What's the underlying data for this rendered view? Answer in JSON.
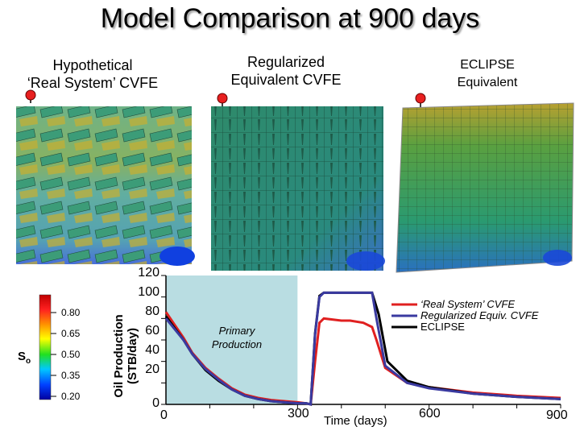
{
  "title": "Model Comparison at 900 days",
  "panels": {
    "real": {
      "label_line1": "Hypothetical",
      "label_line2": "‘Real System’ CVFE"
    },
    "reg": {
      "label_line1": "Regularized",
      "label_line2": "Equivalent CVFE"
    },
    "eclipse": {
      "label_line1": "ECLIPSE",
      "label_line2": "Equivalent"
    }
  },
  "colorbar": {
    "variable": "So",
    "ticks": [
      "0.80",
      "0.65",
      "0.50",
      "0.35",
      "0.20"
    ],
    "colors": [
      "#c00000",
      "#ff2020",
      "#ff9000",
      "#ffff00",
      "#20e020",
      "#00c8ff",
      "#0040ff",
      "#0000a0"
    ]
  },
  "chart_data": {
    "type": "line",
    "title": "",
    "xlabel": "Time (days)",
    "ylabel_line1": "Oil Production",
    "ylabel_line2": "(STB/day)",
    "xlim": [
      0,
      900
    ],
    "ylim": [
      0,
      120
    ],
    "xticks": [
      "0",
      "300",
      "600",
      "900"
    ],
    "yticks": [
      "120",
      "100",
      "80",
      "60",
      "40",
      "20",
      "0"
    ],
    "grid": false,
    "annotation_line1": "Primary",
    "annotation_line2": "Production",
    "shaded_region": {
      "x_start": 0,
      "x_end": 300,
      "color": "#b9dde2"
    },
    "series": [
      {
        "name": "‘Real System’ CVFE",
        "color": "#e02020",
        "x": [
          0,
          20,
          40,
          60,
          90,
          120,
          150,
          180,
          210,
          240,
          270,
          300,
          320,
          330,
          340,
          350,
          360,
          400,
          420,
          450,
          470,
          480,
          500,
          550,
          600,
          700,
          800,
          900
        ],
        "y": [
          86,
          74,
          62,
          48,
          34,
          24,
          15,
          9,
          6,
          4,
          3,
          2,
          1,
          0,
          40,
          76,
          80,
          78,
          78,
          76,
          72,
          60,
          34,
          20,
          16,
          11,
          8,
          6
        ]
      },
      {
        "name": "Regularized Equiv. CVFE",
        "color": "#3a3aa0",
        "x": [
          0,
          20,
          40,
          60,
          90,
          120,
          150,
          180,
          210,
          240,
          270,
          300,
          320,
          330,
          340,
          350,
          360,
          400,
          420,
          450,
          470,
          480,
          500,
          550,
          600,
          700,
          800,
          900
        ],
        "y": [
          80,
          70,
          60,
          47,
          33,
          23,
          14,
          8,
          5,
          3,
          2,
          1,
          1,
          0,
          65,
          100,
          104,
          104,
          104,
          104,
          104,
          80,
          36,
          20,
          15,
          10,
          7,
          5
        ]
      },
      {
        "name": "ECLIPSE",
        "color": "#000000",
        "x": [
          0,
          20,
          40,
          60,
          90,
          120,
          150,
          180,
          210,
          240,
          270,
          300,
          320,
          330,
          340,
          350,
          360,
          400,
          420,
          450,
          470,
          485,
          505,
          550,
          600,
          700,
          800,
          900
        ],
        "y": [
          82,
          71,
          60,
          47,
          32,
          22,
          14,
          8,
          5,
          3,
          2,
          1,
          1,
          0,
          66,
          101,
          104,
          104,
          104,
          104,
          104,
          84,
          40,
          22,
          16,
          10,
          7,
          5
        ]
      }
    ]
  }
}
